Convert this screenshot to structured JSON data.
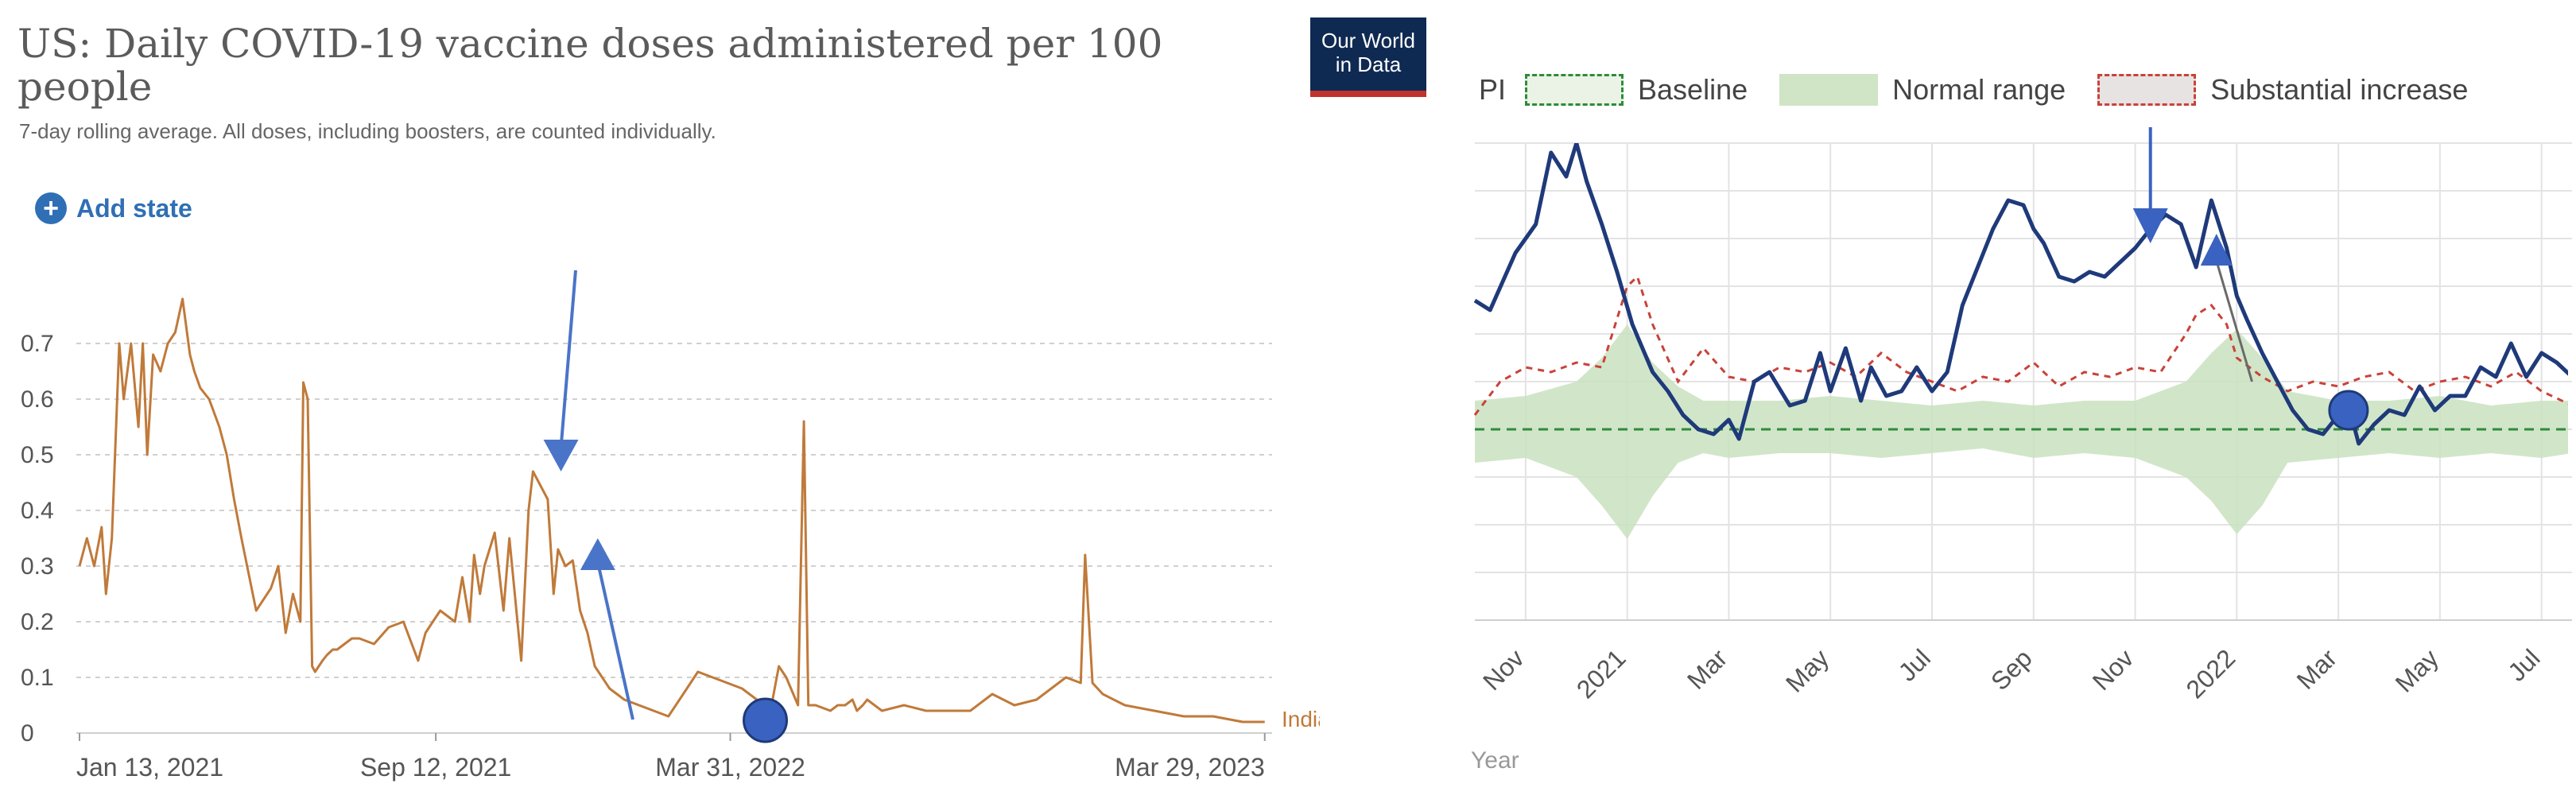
{
  "left": {
    "title": "US: Daily COVID-19 vaccine doses administered per 100 people",
    "subtitle": "7-day rolling average. All doses, including boosters, are counted individually.",
    "add_state": "Add state",
    "logo_line1": "Our World",
    "logo_line2": "in Data",
    "series_label": "Indiana",
    "line_color": "#c07a3a"
  },
  "right": {
    "legend_partial": "PI",
    "legend_baseline": "Baseline",
    "legend_normal": "Normal range",
    "legend_substantial": "Substantial increase",
    "axis_title": "Year",
    "main_color": "#1f3a7a"
  },
  "chart_data": [
    {
      "type": "line",
      "title": "US: Daily COVID-19 vaccine doses administered per 100 people",
      "subtitle": "7-day rolling average. All doses, including boosters, are counted individually.",
      "series_name": "Indiana",
      "ylim": [
        0,
        0.8
      ],
      "yticks": [
        0,
        0.1,
        0.2,
        0.3,
        0.4,
        0.5,
        0.6,
        0.7
      ],
      "ytick_labels": [
        "0",
        "0.1",
        "0.2",
        "0.3",
        "0.4",
        "0.5",
        "0.6",
        "0.7"
      ],
      "xlim": [
        0,
        810
      ],
      "xticks": [
        0,
        242,
        442,
        805
      ],
      "xtick_labels": [
        "Jan 13, 2021",
        "Sep 12, 2021",
        "Mar 31, 2022",
        "Mar 29, 2023"
      ],
      "x_days": [
        0,
        5,
        10,
        15,
        18,
        22,
        27,
        30,
        35,
        40,
        43,
        46,
        50,
        55,
        60,
        65,
        70,
        75,
        78,
        82,
        88,
        95,
        100,
        105,
        110,
        120,
        130,
        135,
        140,
        145,
        150,
        152,
        155,
        158,
        160,
        165,
        168,
        172,
        175,
        180,
        185,
        190,
        200,
        210,
        220,
        230,
        235,
        240,
        245,
        255,
        260,
        265,
        268,
        272,
        275,
        282,
        288,
        292,
        300,
        305,
        308,
        312,
        318,
        322,
        325,
        330,
        335,
        340,
        345,
        350,
        360,
        370,
        380,
        390,
        400,
        410,
        420,
        430,
        440,
        450,
        460,
        470,
        475,
        480,
        488,
        492,
        495,
        500,
        510,
        515,
        520,
        525,
        528,
        532,
        535,
        545,
        560,
        575,
        590,
        605,
        620,
        635,
        650,
        660,
        670,
        680,
        683,
        688,
        695,
        710,
        730,
        750,
        770,
        790,
        800,
        805
      ],
      "values": [
        0.3,
        0.35,
        0.3,
        0.37,
        0.25,
        0.35,
        0.7,
        0.6,
        0.7,
        0.55,
        0.7,
        0.5,
        0.68,
        0.65,
        0.7,
        0.72,
        0.78,
        0.68,
        0.65,
        0.62,
        0.6,
        0.55,
        0.5,
        0.42,
        0.35,
        0.22,
        0.26,
        0.3,
        0.18,
        0.25,
        0.2,
        0.63,
        0.6,
        0.12,
        0.11,
        0.13,
        0.14,
        0.15,
        0.15,
        0.16,
        0.17,
        0.17,
        0.16,
        0.19,
        0.2,
        0.13,
        0.18,
        0.2,
        0.22,
        0.2,
        0.28,
        0.2,
        0.32,
        0.25,
        0.3,
        0.36,
        0.22,
        0.35,
        0.13,
        0.4,
        0.47,
        0.45,
        0.42,
        0.25,
        0.33,
        0.3,
        0.31,
        0.22,
        0.18,
        0.12,
        0.08,
        0.06,
        0.05,
        0.04,
        0.03,
        0.07,
        0.11,
        0.1,
        0.09,
        0.08,
        0.06,
        0.05,
        0.12,
        0.1,
        0.05,
        0.56,
        0.05,
        0.05,
        0.04,
        0.05,
        0.05,
        0.06,
        0.04,
        0.05,
        0.06,
        0.04,
        0.05,
        0.04,
        0.04,
        0.04,
        0.07,
        0.05,
        0.06,
        0.08,
        0.1,
        0.09,
        0.32,
        0.09,
        0.07,
        0.05,
        0.04,
        0.03,
        0.03,
        0.02,
        0.02,
        0.02
      ],
      "annotations": [
        "down arrow near Jan 2022 peak",
        "up arrow near Feb 2022",
        "circle marker near Mar 31, 2022"
      ]
    },
    {
      "type": "line",
      "series_name": "PI",
      "xlabel": "Year",
      "xtick_labels": [
        "Nov",
        "2021",
        "Mar",
        "May",
        "Jul",
        "Sep",
        "Nov",
        "2022",
        "Mar",
        "May",
        "Jul"
      ],
      "xticks": [
        1.0,
        3.0,
        5.0,
        7.0,
        9.0,
        11.0,
        13.0,
        15.0,
        17.0,
        19.0,
        21.0
      ],
      "xlim": [
        0,
        21.6
      ],
      "ylim": [
        0,
        10
      ],
      "legend": [
        "PI",
        "Baseline",
        "Normal range",
        "Substantial increase"
      ],
      "baseline": 4.0,
      "main_series": {
        "x": [
          0,
          0.3,
          0.8,
          1.2,
          1.5,
          1.8,
          2.0,
          2.2,
          2.5,
          2.8,
          3.1,
          3.5,
          3.8,
          4.1,
          4.4,
          4.7,
          5.0,
          5.2,
          5.5,
          5.8,
          6.2,
          6.5,
          6.8,
          7.0,
          7.3,
          7.6,
          7.8,
          8.1,
          8.4,
          8.7,
          9.0,
          9.3,
          9.6,
          9.9,
          10.2,
          10.5,
          10.8,
          11.0,
          11.2,
          11.5,
          11.8,
          12.1,
          12.4,
          12.7,
          13.0,
          13.3,
          13.6,
          13.9,
          14.2,
          14.5,
          14.8,
          15.0,
          15.2,
          15.5,
          15.8,
          16.1,
          16.4,
          16.7,
          17.0,
          17.2,
          17.4,
          17.7,
          18.0,
          18.3,
          18.6,
          18.9,
          19.2,
          19.5,
          19.8,
          20.1,
          20.4,
          20.7,
          21.0,
          21.3,
          21.6
        ],
        "y": [
          6.7,
          6.5,
          7.7,
          8.3,
          9.8,
          9.3,
          10.0,
          9.2,
          8.3,
          7.3,
          6.2,
          5.2,
          4.8,
          4.3,
          4.0,
          3.9,
          4.2,
          3.8,
          5.0,
          5.2,
          4.5,
          4.6,
          5.6,
          4.8,
          5.7,
          4.6,
          5.3,
          4.7,
          4.8,
          5.3,
          4.8,
          5.2,
          6.6,
          7.4,
          8.2,
          8.8,
          8.7,
          8.2,
          7.9,
          7.2,
          7.1,
          7.3,
          7.2,
          7.5,
          7.8,
          8.2,
          8.5,
          8.3,
          7.4,
          8.8,
          7.8,
          6.8,
          6.3,
          5.6,
          5.0,
          4.4,
          4.0,
          3.9,
          4.3,
          4.5,
          3.7,
          4.1,
          4.4,
          4.3,
          4.9,
          4.4,
          4.7,
          4.7,
          5.3,
          5.1,
          5.8,
          5.1,
          5.6,
          5.4,
          5.1
        ]
      },
      "upper_series": {
        "x": [
          0,
          0.5,
          1.0,
          1.5,
          2.0,
          2.5,
          3.0,
          3.2,
          3.5,
          4.0,
          4.5,
          5.0,
          5.5,
          6.0,
          6.5,
          7.0,
          7.5,
          8.0,
          8.5,
          9.0,
          9.5,
          10.0,
          10.5,
          11.0,
          11.5,
          12.0,
          12.5,
          13.0,
          13.5,
          14.0,
          14.2,
          14.5,
          14.8,
          15.0,
          15.5,
          16.0,
          16.5,
          17.0,
          17.5,
          18.0,
          18.5,
          19.0,
          19.5,
          20.0,
          20.5,
          21.0,
          21.6
        ],
        "y": [
          4.3,
          5.0,
          5.3,
          5.2,
          5.4,
          5.3,
          7.0,
          7.2,
          6.2,
          5.0,
          5.7,
          5.1,
          5.0,
          5.3,
          5.2,
          5.4,
          5.1,
          5.6,
          5.2,
          5.0,
          4.8,
          5.1,
          5.0,
          5.4,
          4.9,
          5.2,
          5.1,
          5.3,
          5.2,
          6.0,
          6.4,
          6.6,
          6.2,
          5.5,
          5.1,
          4.8,
          5.0,
          4.9,
          5.1,
          5.2,
          4.8,
          5.0,
          5.1,
          4.9,
          5.2,
          4.8,
          4.5
        ]
      },
      "normal_range": {
        "x": [
          0,
          1,
          2,
          2.5,
          3,
          3.5,
          4,
          4.5,
          5,
          6,
          7,
          8,
          9,
          10,
          11,
          12,
          13,
          14,
          14.5,
          15,
          15.5,
          16,
          17,
          18,
          19,
          20,
          21,
          21.6
        ],
        "lower": [
          3.3,
          3.4,
          3.0,
          2.4,
          1.7,
          2.6,
          3.3,
          3.5,
          3.4,
          3.5,
          3.5,
          3.4,
          3.5,
          3.6,
          3.4,
          3.5,
          3.4,
          3.0,
          2.5,
          1.8,
          2.4,
          3.3,
          3.4,
          3.5,
          3.4,
          3.5,
          3.4,
          3.5
        ],
        "upper": [
          4.6,
          4.7,
          5.0,
          5.5,
          6.2,
          5.4,
          4.9,
          4.6,
          4.6,
          4.6,
          4.7,
          4.6,
          4.5,
          4.6,
          4.5,
          4.6,
          4.6,
          5.0,
          5.6,
          6.1,
          5.5,
          4.8,
          4.6,
          4.6,
          4.7,
          4.5,
          4.6,
          4.6
        ]
      },
      "annotations": [
        "down arrow near Dec 2021 peak",
        "up arrow near Jan 2022",
        "circle marker near Mar 2022"
      ]
    }
  ]
}
